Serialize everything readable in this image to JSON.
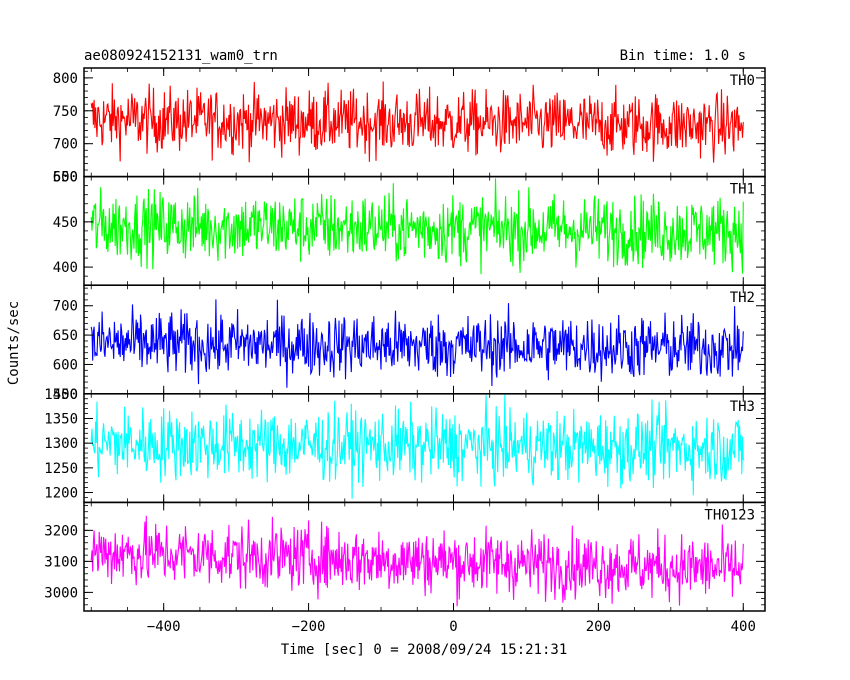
{
  "header": {
    "title": "ae080924152131_wam0_trn",
    "bin_time": "Bin time: 1.0 s"
  },
  "axes": {
    "xlabel": "Time [sec] 0 = 2008/09/24 15:21:31",
    "ylabel": "Counts/sec"
  },
  "chart_data": {
    "type": "line",
    "xlim": [
      -510,
      430
    ],
    "x_range": [
      -500,
      400
    ],
    "x_ticks": [
      -400,
      -200,
      0,
      200,
      400
    ],
    "x_tick_labels": [
      "−400",
      "−200",
      "0",
      "200",
      "400"
    ],
    "grid": false,
    "panels": [
      {
        "name": "TH0",
        "color": "#ff0000",
        "ylim": [
          650,
          815
        ],
        "yticks": [
          650,
          700,
          750,
          800
        ],
        "ytick_labels": [
          "650",
          "700",
          "750",
          "800"
        ],
        "mean": 737,
        "noise": 24,
        "trend": -10
      },
      {
        "name": "TH1",
        "color": "#00ff00",
        "ylim": [
          380,
          500
        ],
        "yticks": [
          400,
          450,
          500
        ],
        "ytick_labels": [
          "400",
          "450",
          "500"
        ],
        "mean": 446,
        "noise": 19,
        "trend": -6
      },
      {
        "name": "TH2",
        "color": "#0000ff",
        "ylim": [
          550,
          735
        ],
        "yticks": [
          550,
          600,
          650,
          700
        ],
        "ytick_labels": [
          "550",
          "600",
          "650",
          "700"
        ],
        "mean": 636,
        "noise": 27,
        "trend": -8
      },
      {
        "name": "TH3",
        "color": "#00ffff",
        "ylim": [
          1180,
          1400
        ],
        "yticks": [
          1200,
          1250,
          1300,
          1350,
          1400
        ],
        "ytick_labels": [
          "1200",
          "1250",
          "1300",
          "1350",
          "1400"
        ],
        "mean": 1300,
        "noise": 36,
        "trend": -10
      },
      {
        "name": "TH0123",
        "color": "#ff00ff",
        "ylim": [
          2940,
          3290
        ],
        "yticks": [
          3000,
          3100,
          3200
        ],
        "ytick_labels": [
          "3000",
          "3100",
          "3200"
        ],
        "mean": 3130,
        "noise": 52,
        "trend": -55
      }
    ]
  }
}
